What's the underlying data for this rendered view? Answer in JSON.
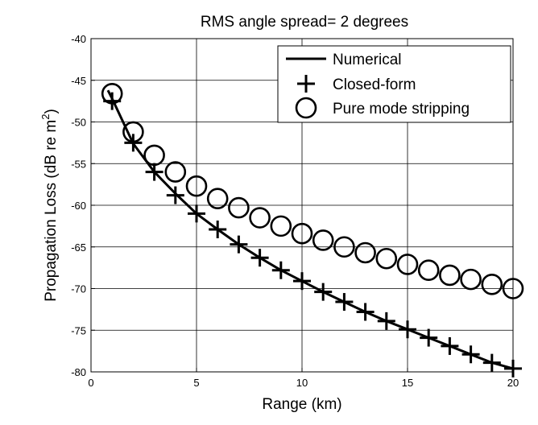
{
  "chart_data": {
    "type": "line",
    "title": "RMS angle spread= 2 degrees",
    "xlabel": "Range (km)",
    "ylabel": "Propagation Loss (dB re m",
    "ylabel_superscript": "2",
    "ylabel_suffix": ")",
    "xlim": [
      0,
      20
    ],
    "ylim": [
      -80,
      -40
    ],
    "xticks": [
      0,
      5,
      10,
      15,
      20
    ],
    "yticks": [
      -80,
      -75,
      -70,
      -65,
      -60,
      -55,
      -50,
      -45,
      -40
    ],
    "xtick_labels": [
      "0",
      "5",
      "10",
      "15",
      "20"
    ],
    "ytick_labels": [
      "-80",
      "-75",
      "-70",
      "-65",
      "-60",
      "-55",
      "-50",
      "-45",
      "-40"
    ],
    "grid": true,
    "legend_position": "top-right",
    "series": [
      {
        "name": "Numerical",
        "style": "solid-line",
        "x": [
          0.8,
          1,
          2,
          3,
          4,
          5,
          6,
          7,
          8,
          9,
          10,
          11,
          12,
          13,
          14,
          15,
          16,
          17,
          18,
          19,
          20
        ],
        "values": [
          -46.2,
          -47.2,
          -52.6,
          -56.0,
          -58.6,
          -61.0,
          -62.9,
          -64.7,
          -66.3,
          -67.8,
          -69.1,
          -70.4,
          -71.6,
          -72.8,
          -73.9,
          -74.9,
          -75.9,
          -76.9,
          -77.9,
          -78.9,
          -79.6
        ]
      },
      {
        "name": "Closed-form",
        "style": "plus-marker",
        "x": [
          1,
          2,
          3,
          4,
          5,
          6,
          7,
          8,
          9,
          10,
          11,
          12,
          13,
          14,
          15,
          16,
          17,
          18,
          19,
          20
        ],
        "values": [
          -47.5,
          -52.5,
          -56.0,
          -58.8,
          -61.0,
          -62.9,
          -64.7,
          -66.3,
          -67.8,
          -69.1,
          -70.4,
          -71.6,
          -72.8,
          -73.9,
          -74.9,
          -75.9,
          -76.9,
          -77.9,
          -78.9,
          -79.6
        ]
      },
      {
        "name": "Pure mode stripping",
        "style": "circle-marker",
        "x": [
          1,
          2,
          3,
          4,
          5,
          6,
          7,
          8,
          9,
          10,
          11,
          12,
          13,
          14,
          15,
          16,
          17,
          18,
          19,
          20
        ],
        "values": [
          -46.6,
          -51.2,
          -54.0,
          -56.0,
          -57.7,
          -59.2,
          -60.3,
          -61.5,
          -62.5,
          -63.4,
          -64.2,
          -65.0,
          -65.7,
          -66.4,
          -67.1,
          -67.8,
          -68.4,
          -68.9,
          -69.5,
          -70.0
        ]
      }
    ]
  }
}
